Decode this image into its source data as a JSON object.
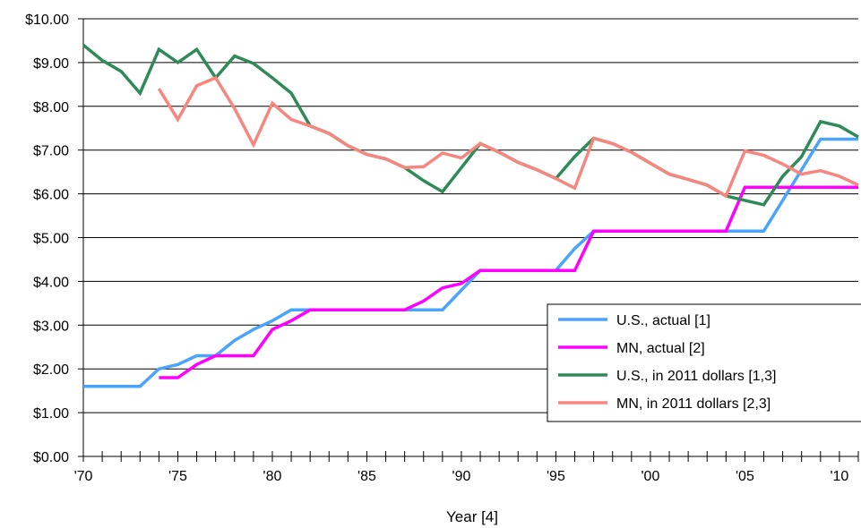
{
  "chart_data": {
    "type": "line",
    "title": "",
    "xlabel": "Year [4]",
    "ylabel": "",
    "xlim": [
      1970,
      2011
    ],
    "ylim": [
      0,
      10
    ],
    "grid": "horizontal",
    "legend_position": "lower-right",
    "y_ticks": [
      "$0.00",
      "$1.00",
      "$2.00",
      "$3.00",
      "$4.00",
      "$5.00",
      "$6.00",
      "$7.00",
      "$8.00",
      "$9.00",
      "$10.00"
    ],
    "x_tick_labels": [
      {
        "year": 1970,
        "label": "'70"
      },
      {
        "year": 1975,
        "label": "'75"
      },
      {
        "year": 1980,
        "label": "'80"
      },
      {
        "year": 1985,
        "label": "'85"
      },
      {
        "year": 1990,
        "label": "'90"
      },
      {
        "year": 1995,
        "label": "'95"
      },
      {
        "year": 2000,
        "label": "'00"
      },
      {
        "year": 2005,
        "label": "'05"
      },
      {
        "year": 2010,
        "label": "'10"
      }
    ],
    "series": [
      {
        "name": "U.S., actual [1]",
        "color": "#4aa3ff",
        "x": [
          1970,
          1971,
          1972,
          1973,
          1974,
          1975,
          1976,
          1977,
          1978,
          1979,
          1980,
          1981,
          1982,
          1983,
          1984,
          1985,
          1986,
          1987,
          1988,
          1989,
          1990,
          1991,
          1992,
          1993,
          1994,
          1995,
          1996,
          1997,
          1998,
          1999,
          2000,
          2001,
          2002,
          2003,
          2004,
          2005,
          2006,
          2007,
          2008,
          2009,
          2010,
          2011
        ],
        "values": [
          1.6,
          1.6,
          1.6,
          1.6,
          2.0,
          2.1,
          2.3,
          2.3,
          2.65,
          2.9,
          3.1,
          3.35,
          3.35,
          3.35,
          3.35,
          3.35,
          3.35,
          3.35,
          3.35,
          3.35,
          3.8,
          4.25,
          4.25,
          4.25,
          4.25,
          4.25,
          4.75,
          5.15,
          5.15,
          5.15,
          5.15,
          5.15,
          5.15,
          5.15,
          5.15,
          5.15,
          5.15,
          5.85,
          6.55,
          7.25,
          7.25,
          7.25
        ]
      },
      {
        "name": "MN, actual [2]",
        "color": "#ff00ff",
        "x": [
          1974,
          1975,
          1976,
          1977,
          1978,
          1979,
          1980,
          1981,
          1982,
          1983,
          1984,
          1985,
          1986,
          1987,
          1988,
          1989,
          1990,
          1991,
          1992,
          1993,
          1994,
          1995,
          1996,
          1997,
          1998,
          1999,
          2000,
          2001,
          2002,
          2003,
          2004,
          2005,
          2006,
          2007,
          2008,
          2009,
          2010,
          2011
        ],
        "values": [
          1.8,
          1.8,
          2.1,
          2.3,
          2.3,
          2.3,
          2.9,
          3.1,
          3.35,
          3.35,
          3.35,
          3.35,
          3.35,
          3.35,
          3.55,
          3.85,
          3.95,
          4.25,
          4.25,
          4.25,
          4.25,
          4.25,
          4.25,
          5.15,
          5.15,
          5.15,
          5.15,
          5.15,
          5.15,
          5.15,
          5.15,
          6.15,
          6.15,
          6.15,
          6.15,
          6.15,
          6.15,
          6.15
        ]
      },
      {
        "name": "U.S., in 2011 dollars [1,3]",
        "color": "#2e8b57",
        "x": [
          1970,
          1971,
          1972,
          1973,
          1974,
          1975,
          1976,
          1977,
          1978,
          1979,
          1980,
          1981,
          1982,
          1983,
          1984,
          1985,
          1986,
          1987,
          1988,
          1989,
          1990,
          1991,
          1992,
          1993,
          1994,
          1995,
          1996,
          1997,
          1998,
          1999,
          2000,
          2001,
          2002,
          2003,
          2004,
          2005,
          2006,
          2007,
          2008,
          2009,
          2010,
          2011
        ],
        "values": [
          9.4,
          9.05,
          8.8,
          8.3,
          9.3,
          9.0,
          9.3,
          8.65,
          9.15,
          8.98,
          8.65,
          8.3,
          7.55,
          7.38,
          7.1,
          6.9,
          6.8,
          6.6,
          6.3,
          6.05,
          6.6,
          7.15,
          6.95,
          6.72,
          6.55,
          6.35,
          6.85,
          7.27,
          7.15,
          6.95,
          6.7,
          6.45,
          6.33,
          6.2,
          5.95,
          5.85,
          5.75,
          6.4,
          6.85,
          7.65,
          7.55,
          7.3
        ]
      },
      {
        "name": "MN, in 2011 dollars [2,3]",
        "color": "#f7867e",
        "x": [
          1974,
          1975,
          1976,
          1977,
          1978,
          1979,
          1980,
          1981,
          1982,
          1983,
          1984,
          1985,
          1986,
          1987,
          1988,
          1989,
          1990,
          1991,
          1992,
          1993,
          1994,
          1995,
          1996,
          1997,
          1998,
          1999,
          2000,
          2001,
          2002,
          2003,
          2004,
          2005,
          2006,
          2007,
          2008,
          2009,
          2010,
          2011
        ],
        "values": [
          8.4,
          7.7,
          8.47,
          8.65,
          7.95,
          7.12,
          8.07,
          7.7,
          7.55,
          7.38,
          7.1,
          6.9,
          6.8,
          6.6,
          6.62,
          6.93,
          6.82,
          7.15,
          6.95,
          6.72,
          6.55,
          6.35,
          6.13,
          7.27,
          7.15,
          6.95,
          6.7,
          6.45,
          6.33,
          6.2,
          5.95,
          6.98,
          6.88,
          6.68,
          6.45,
          6.53,
          6.4,
          6.2
        ]
      }
    ]
  }
}
